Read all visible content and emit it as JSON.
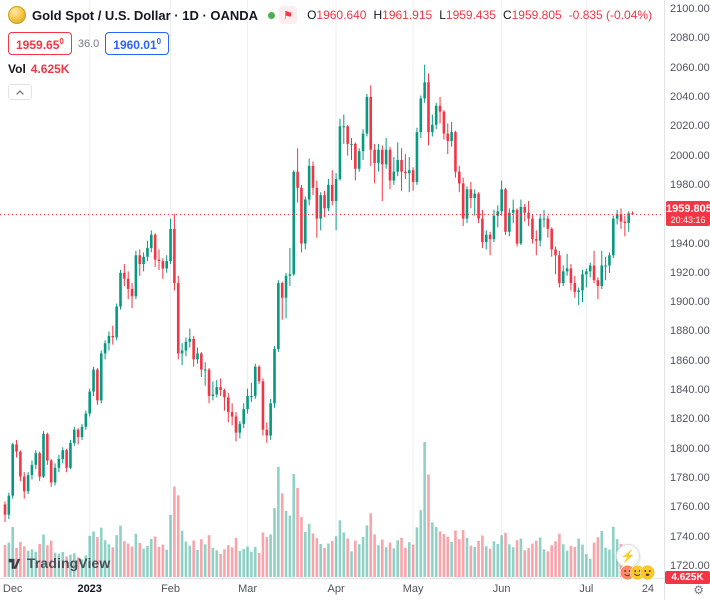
{
  "legend": {
    "title": "Gold Spot / U.S. Dollar · 1D · OANDA",
    "ohlc": {
      "o_label": "O",
      "o": "1960.640",
      "h_label": "H",
      "h": "1961.915",
      "l_label": "L",
      "l": "1959.435",
      "c_label": "C",
      "c": "1959.805",
      "change": "-0.835 (-0.04%)"
    },
    "sell_price": "1959.65",
    "sell_sup": "0",
    "spread": "36.0",
    "buy_price": "1960.01",
    "buy_sup": "0",
    "vol_label": "Vol",
    "vol_value": "4.625K"
  },
  "price_axis": {
    "labels": [
      "2100.000",
      "2080.000",
      "2060.000",
      "2040.000",
      "2020.000",
      "2000.000",
      "1980.000",
      "1960.000",
      "1940.000",
      "1920.000",
      "1900.000",
      "1880.000",
      "1860.000",
      "1840.000",
      "1820.000",
      "1800.000",
      "1780.000",
      "1760.000",
      "1740.000",
      "1720.000"
    ],
    "last_price": "1959.805",
    "countdown": "20:43:16",
    "vol_badge": "4.625K"
  },
  "footer": {
    "logo_text": "TradingView",
    "lightning_icon": "⚡",
    "gear_icon": "⚙",
    "flag_icon": "⚑"
  },
  "colors": {
    "up": "#089981",
    "down": "#f23645",
    "volume_up": "rgba(8,153,129,0.45)",
    "volume_down": "rgba(242,54,69,0.45)",
    "grid": "#eceff2",
    "badge_red": "#f23645",
    "accent_blue": "#2962ff",
    "status_green": "#4caf50"
  },
  "chart_data": {
    "type": "candlestick",
    "symbol": "Gold Spot / U.S. Dollar",
    "interval": "1D",
    "exchange": "OANDA",
    "y_min": 1720,
    "y_max": 2100,
    "y_step": 20,
    "current_price": 1959.805,
    "volume_unit": "K",
    "candle_format": [
      "open",
      "high",
      "low",
      "close",
      "volume_k"
    ],
    "month_ticks": [
      {
        "label": "Dec",
        "index": 2,
        "grid": false,
        "major": false
      },
      {
        "label": "2023",
        "index": 22,
        "grid": true,
        "major": true
      },
      {
        "label": "Feb",
        "index": 43,
        "grid": true,
        "major": false
      },
      {
        "label": "Mar",
        "index": 63,
        "grid": true,
        "major": false
      },
      {
        "label": "Apr",
        "index": 86,
        "grid": true,
        "major": false
      },
      {
        "label": "May",
        "index": 106,
        "grid": true,
        "major": false
      },
      {
        "label": "Jun",
        "index": 129,
        "grid": true,
        "major": false
      },
      {
        "label": "Jul",
        "index": 151,
        "grid": true,
        "major": false
      },
      {
        "label": "24",
        "index": 167,
        "grid": false,
        "major": false
      }
    ],
    "candles": [
      [
        1762,
        1764,
        1750,
        1755,
        9.5
      ],
      [
        1755,
        1770,
        1752,
        1768,
        10.2
      ],
      [
        1768,
        1804,
        1766,
        1803,
        14.8
      ],
      [
        1803,
        1806,
        1794,
        1798,
        8.6
      ],
      [
        1798,
        1799,
        1778,
        1781,
        10.4
      ],
      [
        1781,
        1784,
        1766,
        1771,
        9.1
      ],
      [
        1771,
        1784,
        1769,
        1782,
        7.8
      ],
      [
        1782,
        1792,
        1779,
        1789,
        8.2
      ],
      [
        1789,
        1799,
        1786,
        1797,
        7.5
      ],
      [
        1797,
        1798,
        1778,
        1781,
        9.8
      ],
      [
        1781,
        1812,
        1780,
        1810,
        12.6
      ],
      [
        1810,
        1811,
        1789,
        1792,
        9.4
      ],
      [
        1792,
        1793,
        1774,
        1777,
        10.8
      ],
      [
        1777,
        1790,
        1775,
        1787,
        7.2
      ],
      [
        1787,
        1796,
        1784,
        1793,
        6.9
      ],
      [
        1793,
        1801,
        1790,
        1799,
        7.4
      ],
      [
        1799,
        1800,
        1784,
        1787,
        6.1
      ],
      [
        1787,
        1806,
        1786,
        1804,
        6.6
      ],
      [
        1804,
        1815,
        1802,
        1813,
        7.0
      ],
      [
        1813,
        1814,
        1803,
        1808,
        5.8
      ],
      [
        1808,
        1817,
        1806,
        1815,
        5.2
      ],
      [
        1815,
        1826,
        1813,
        1824,
        6.4
      ],
      [
        1824,
        1841,
        1822,
        1839,
        12.2
      ],
      [
        1839,
        1856,
        1836,
        1854,
        13.5
      ],
      [
        1854,
        1855,
        1830,
        1833,
        11.8
      ],
      [
        1833,
        1867,
        1831,
        1865,
        14.6
      ],
      [
        1865,
        1874,
        1861,
        1872,
        10.9
      ],
      [
        1872,
        1880,
        1867,
        1877,
        9.7
      ],
      [
        1877,
        1884,
        1871,
        1876,
        8.8
      ],
      [
        1876,
        1899,
        1874,
        1897,
        12.4
      ],
      [
        1897,
        1922,
        1895,
        1920,
        15.2
      ],
      [
        1920,
        1926,
        1911,
        1916,
        10.6
      ],
      [
        1916,
        1921,
        1902,
        1909,
        9.9
      ],
      [
        1909,
        1913,
        1896,
        1904,
        9.0
      ],
      [
        1904,
        1935,
        1902,
        1932,
        12.8
      ],
      [
        1932,
        1936,
        1918,
        1926,
        10.1
      ],
      [
        1926,
        1934,
        1921,
        1931,
        8.4
      ],
      [
        1931,
        1942,
        1928,
        1937,
        9.2
      ],
      [
        1937,
        1949,
        1934,
        1946,
        11.3
      ],
      [
        1946,
        1947,
        1924,
        1929,
        12.0
      ],
      [
        1929,
        1936,
        1922,
        1928,
        8.9
      ],
      [
        1928,
        1930,
        1916,
        1923,
        9.6
      ],
      [
        1923,
        1932,
        1920,
        1928,
        8.1
      ],
      [
        1928,
        1957,
        1926,
        1950,
        18.4
      ],
      [
        1950,
        1960,
        1908,
        1913,
        26.8
      ],
      [
        1913,
        1918,
        1861,
        1865,
        24.2
      ],
      [
        1865,
        1872,
        1857,
        1867,
        13.7
      ],
      [
        1867,
        1876,
        1863,
        1873,
        10.5
      ],
      [
        1873,
        1882,
        1869,
        1875,
        9.3
      ],
      [
        1875,
        1877,
        1856,
        1861,
        10.8
      ],
      [
        1861,
        1869,
        1858,
        1865,
        8.0
      ],
      [
        1865,
        1866,
        1849,
        1854,
        11.2
      ],
      [
        1854,
        1859,
        1843,
        1854,
        9.7
      ],
      [
        1854,
        1855,
        1831,
        1836,
        12.4
      ],
      [
        1836,
        1846,
        1833,
        1837,
        8.6
      ],
      [
        1837,
        1847,
        1835,
        1842,
        7.9
      ],
      [
        1842,
        1848,
        1836,
        1840,
        6.8
      ],
      [
        1840,
        1841,
        1826,
        1835,
        8.2
      ],
      [
        1835,
        1838,
        1818,
        1825,
        9.4
      ],
      [
        1825,
        1831,
        1816,
        1822,
        8.8
      ],
      [
        1822,
        1825,
        1805,
        1811,
        11.6
      ],
      [
        1811,
        1819,
        1807,
        1817,
        7.7
      ],
      [
        1817,
        1831,
        1814,
        1827,
        8.3
      ],
      [
        1827,
        1841,
        1824,
        1836,
        9.0
      ],
      [
        1836,
        1845,
        1832,
        1836,
        7.5
      ],
      [
        1836,
        1858,
        1834,
        1856,
        8.9
      ],
      [
        1856,
        1857,
        1844,
        1846,
        7.1
      ],
      [
        1846,
        1848,
        1809,
        1813,
        13.2
      ],
      [
        1813,
        1818,
        1804,
        1809,
        11.8
      ],
      [
        1809,
        1834,
        1806,
        1831,
        12.6
      ],
      [
        1831,
        1870,
        1828,
        1868,
        20.4
      ],
      [
        1868,
        1915,
        1866,
        1913,
        32.6
      ],
      [
        1913,
        1914,
        1888,
        1903,
        24.8
      ],
      [
        1903,
        1920,
        1889,
        1918,
        19.6
      ],
      [
        1918,
        1937,
        1911,
        1919,
        18.2
      ],
      [
        1919,
        1990,
        1918,
        1989,
        30.5
      ],
      [
        1989,
        2005,
        1968,
        1978,
        26.4
      ],
      [
        1978,
        1980,
        1934,
        1940,
        17.8
      ],
      [
        1940,
        1972,
        1936,
        1970,
        13.4
      ],
      [
        1970,
        1998,
        1966,
        1993,
        15.7
      ],
      [
        1993,
        1996,
        1973,
        1978,
        12.9
      ],
      [
        1978,
        1983,
        1944,
        1957,
        11.5
      ],
      [
        1957,
        1975,
        1949,
        1973,
        9.8
      ],
      [
        1973,
        1976,
        1958,
        1964,
        8.6
      ],
      [
        1964,
        1984,
        1962,
        1980,
        9.9
      ],
      [
        1980,
        1990,
        1966,
        1969,
        10.7
      ],
      [
        1969,
        1988,
        1949,
        1984,
        12.1
      ],
      [
        1984,
        2025,
        1983,
        2020,
        16.8
      ],
      [
        2020,
        2028,
        2008,
        2020,
        13.2
      ],
      [
        2020,
        2021,
        2000,
        2008,
        11.4
      ],
      [
        2008,
        2012,
        1997,
        2008,
        7.6
      ],
      [
        2008,
        2009,
        1983,
        1991,
        10.8
      ],
      [
        1991,
        2005,
        1989,
        2003,
        9.7
      ],
      [
        2003,
        2018,
        1997,
        2015,
        11.9
      ],
      [
        2015,
        2042,
        2013,
        2040,
        15.3
      ],
      [
        2040,
        2048,
        1993,
        2004,
        18.9
      ],
      [
        2004,
        2008,
        1981,
        1995,
        12.6
      ],
      [
        1995,
        2008,
        1989,
        2004,
        9.4
      ],
      [
        2004,
        2007,
        1969,
        1994,
        11.1
      ],
      [
        1994,
        2012,
        1991,
        2004,
        8.8
      ],
      [
        2004,
        2006,
        1977,
        1983,
        10.2
      ],
      [
        1983,
        1999,
        1980,
        1989,
        8.5
      ],
      [
        1989,
        2009,
        1986,
        1997,
        10.9
      ],
      [
        1997,
        2005,
        1976,
        1989,
        11.6
      ],
      [
        1989,
        2001,
        1984,
        1988,
        8.7
      ],
      [
        1988,
        1999,
        1975,
        1990,
        10.3
      ],
      [
        1990,
        1992,
        1976,
        1982,
        9.6
      ],
      [
        1982,
        2019,
        1980,
        2016,
        14.7
      ],
      [
        2016,
        2041,
        2012,
        2039,
        19.8
      ],
      [
        2039,
        2062,
        2036,
        2050,
        40.0
      ],
      [
        2050,
        2056,
        2007,
        2016,
        30.4
      ],
      [
        2016,
        2028,
        2013,
        2021,
        16.2
      ],
      [
        2021,
        2036,
        2018,
        2034,
        14.8
      ],
      [
        2034,
        2040,
        2022,
        2030,
        13.5
      ],
      [
        2030,
        2031,
        2011,
        2015,
        12.7
      ],
      [
        2015,
        2022,
        2001,
        2010,
        11.9
      ],
      [
        2010,
        2023,
        2006,
        2016,
        10.4
      ],
      [
        2016,
        2017,
        1985,
        1989,
        13.8
      ],
      [
        1989,
        1993,
        1975,
        1981,
        11.2
      ],
      [
        1981,
        1985,
        1952,
        1957,
        13.9
      ],
      [
        1957,
        1979,
        1954,
        1977,
        11.6
      ],
      [
        1977,
        1982,
        1964,
        1971,
        9.3
      ],
      [
        1971,
        1977,
        1959,
        1974,
        8.9
      ],
      [
        1974,
        1975,
        1954,
        1957,
        10.7
      ],
      [
        1957,
        1963,
        1937,
        1941,
        12.3
      ],
      [
        1941,
        1949,
        1936,
        1946,
        9.1
      ],
      [
        1946,
        1948,
        1932,
        1943,
        8.4
      ],
      [
        1943,
        1963,
        1941,
        1959,
        10.6
      ],
      [
        1959,
        1966,
        1951,
        1962,
        9.8
      ],
      [
        1962,
        1983,
        1959,
        1977,
        12.4
      ],
      [
        1977,
        1978,
        1946,
        1948,
        13.1
      ],
      [
        1948,
        1964,
        1945,
        1961,
        9.7
      ],
      [
        1961,
        1970,
        1954,
        1963,
        8.8
      ],
      [
        1963,
        1964,
        1938,
        1940,
        10.9
      ],
      [
        1940,
        1970,
        1939,
        1965,
        11.4
      ],
      [
        1965,
        1967,
        1955,
        1961,
        7.9
      ],
      [
        1961,
        1969,
        1952,
        1957,
        8.6
      ],
      [
        1957,
        1960,
        1940,
        1943,
        9.9
      ],
      [
        1943,
        1949,
        1932,
        1942,
        10.8
      ],
      [
        1942,
        1960,
        1938,
        1957,
        11.7
      ],
      [
        1957,
        1963,
        1951,
        1957,
        8.2
      ],
      [
        1957,
        1959,
        1944,
        1950,
        7.6
      ],
      [
        1950,
        1951,
        1931,
        1936,
        9.4
      ],
      [
        1936,
        1938,
        1919,
        1932,
        10.6
      ],
      [
        1932,
        1935,
        1910,
        1913,
        12.8
      ],
      [
        1913,
        1925,
        1911,
        1921,
        9.7
      ],
      [
        1921,
        1933,
        1918,
        1923,
        7.8
      ],
      [
        1923,
        1926,
        1908,
        1913,
        9.2
      ],
      [
        1913,
        1918,
        1903,
        1907,
        8.9
      ],
      [
        1907,
        1910,
        1898,
        1908,
        11.4
      ],
      [
        1908,
        1922,
        1900,
        1919,
        9.6
      ],
      [
        1919,
        1923,
        1910,
        1921,
        6.8
      ],
      [
        1921,
        1927,
        1917,
        1925,
        5.4
      ],
      [
        1925,
        1935,
        1913,
        1915,
        10.2
      ],
      [
        1915,
        1917,
        1902,
        1911,
        11.8
      ],
      [
        1911,
        1935,
        1909,
        1925,
        13.6
      ],
      [
        1925,
        1931,
        1915,
        1925,
        8.7
      ],
      [
        1925,
        1934,
        1920,
        1932,
        8.1
      ],
      [
        1932,
        1959,
        1930,
        1957,
        14.9
      ],
      [
        1957,
        1963,
        1953,
        1960,
        11.2
      ],
      [
        1960,
        1964,
        1950,
        1955,
        9.8
      ],
      [
        1955,
        1959,
        1945,
        1954,
        7.9
      ],
      [
        1954,
        1962,
        1948,
        1960.6,
        8.4
      ],
      [
        1960.64,
        1961.915,
        1959.435,
        1959.805,
        4.625
      ]
    ]
  }
}
